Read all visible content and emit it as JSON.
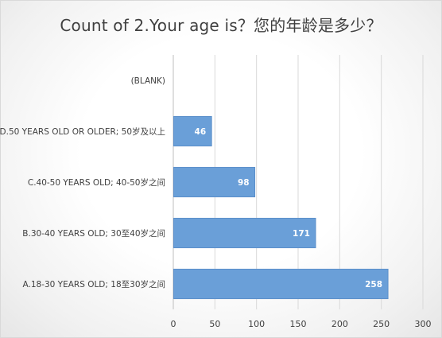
{
  "chart_data": {
    "type": "bar",
    "orientation": "horizontal",
    "title": "Count of 2.Your age is？您的年龄是多少？",
    "categories": [
      "(BLANK)",
      "D.50 YEARS OLD OR OLDER; 50岁及以上",
      "C.40-50 YEARS OLD; 40-50岁之间",
      "B.30-40 YEARS OLD; 30至40岁之间",
      "A.18-30 YEARS OLD; 18至30岁之间"
    ],
    "values": [
      null,
      46,
      98,
      171,
      258
    ],
    "xlim": [
      0,
      300
    ],
    "xticks": [
      0,
      50,
      100,
      150,
      200,
      250,
      300
    ],
    "grid": true,
    "legend": "none",
    "bar_color": "#6a9fd8",
    "bar_border_color": "#5b8fca"
  }
}
